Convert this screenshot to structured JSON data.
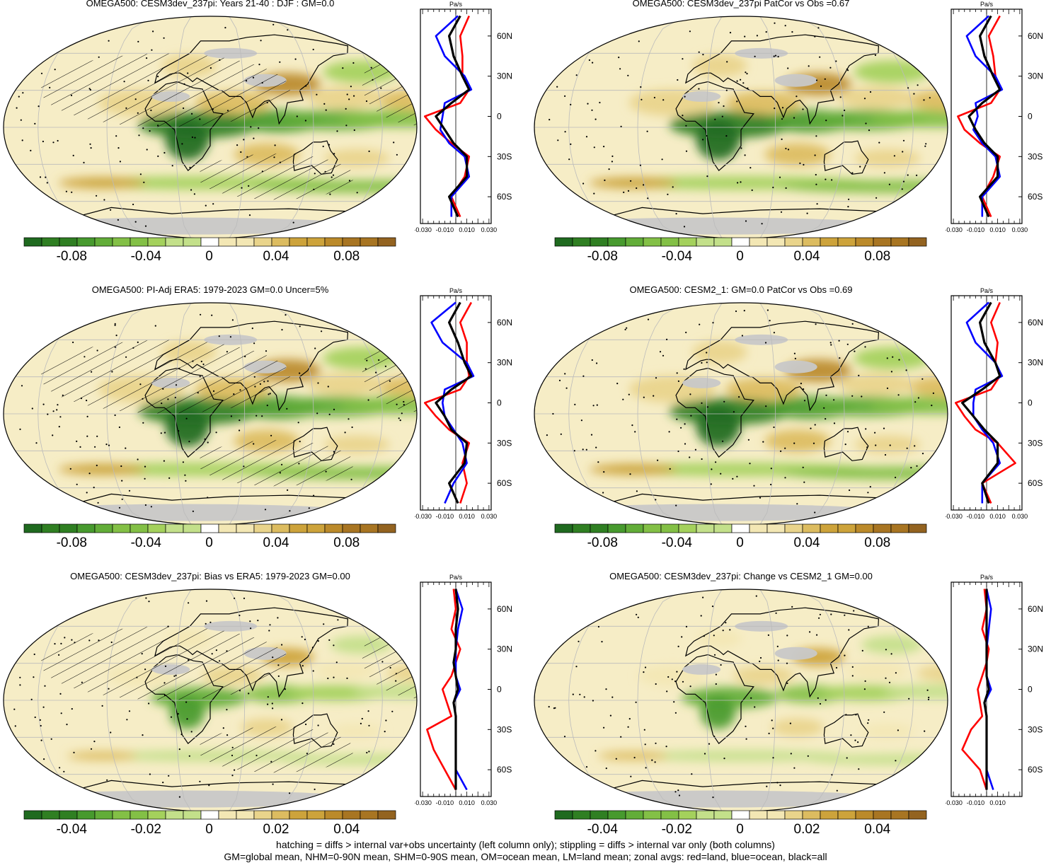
{
  "palette": [
    "#1f6a1f",
    "#2f7f22",
    "#479a2e",
    "#62ad38",
    "#83c046",
    "#a4d15c",
    "#c3e08a",
    "#ffffff",
    "#f3e7b4",
    "#e9d48b",
    "#dcbc60",
    "#cda33b",
    "#bb8a2a",
    "#a87522",
    "#936320"
  ],
  "land_gray": "#c8c8c8",
  "series_colors": {
    "land": "#ff0000",
    "ocean": "#0000ff",
    "all": "#000000"
  },
  "panels": [
    {
      "title": "OMEGA500: CESM3dev_237pi: Years 21-40 : DJF : GM=0.0",
      "cbar_labels": [
        "-0.08",
        "-0.04",
        "0",
        "0.04",
        "0.08"
      ],
      "zonal_ticks": [
        "-0.030",
        "-0.010",
        "0.010",
        "0.030"
      ],
      "hatch": true
    },
    {
      "title": "OMEGA500: CESM3dev_237pi PatCor vs Obs =0.67",
      "cbar_labels": [
        "-0.08",
        "-0.04",
        "0",
        "0.04",
        "0.08"
      ],
      "zonal_ticks": [
        "-0.030",
        "-0.010",
        "0.010",
        "0.030"
      ],
      "hatch": false
    },
    {
      "title": "OMEGA500: PI-Adj ERA5: 1979-2023 GM=0.0 Uncer=5%",
      "cbar_labels": [
        "-0.08",
        "-0.04",
        "0",
        "0.04",
        "0.08"
      ],
      "zonal_ticks": [
        "-0.030",
        "-0.010",
        "0.010",
        "0.030"
      ],
      "hatch": true
    },
    {
      "title": "OMEGA500: CESM2_1: GM=0.0 PatCor vs Obs =0.69",
      "cbar_labels": [
        "-0.08",
        "-0.04",
        "0",
        "0.04",
        "0.08"
      ],
      "zonal_ticks": [
        "-0.030",
        "-0.010",
        "0.010",
        "0.030"
      ],
      "hatch": false
    },
    {
      "title": "OMEGA500: CESM3dev_237pi: Bias vs ERA5: 1979-2023 GM=0.00",
      "cbar_labels": [
        "-0.04",
        "-0.02",
        "0",
        "0.02",
        "0.04"
      ],
      "zonal_ticks": [
        "-0.030",
        "-0.010",
        "0.010",
        "0.030"
      ],
      "hatch": true
    },
    {
      "title": "OMEGA500: CESM3dev_237pi: Change vs CESM2_1 GM=0.00",
      "cbar_labels": [
        "-0.04",
        "-0.02",
        "0",
        "0.02",
        "0.04"
      ],
      "zonal_ticks": [
        "-0.030",
        "-0.010",
        "0.010"
      ],
      "hatch": false
    }
  ],
  "zonal_unit": "Pa/s",
  "lat_labels": [
    "60N",
    "30N",
    "0",
    "30S",
    "60S"
  ],
  "footer": {
    "line1": "hatching = diffs > internal var+obs uncertainty (left column only); stippling = diffs > internal var only (both columns)",
    "line2": "GM=global mean, NHM=0-90N mean, SHM=0-90S mean, OM=ocean mean, LM=land mean; zonal avgs: red=land, blue=ocean, black=all"
  },
  "chart_data": {
    "type": "map",
    "variable": "OMEGA500",
    "zonal_profiles": [
      {
        "lat": [
          75,
          60,
          45,
          30,
          20,
          10,
          0,
          -10,
          -20,
          -30,
          -45,
          -60,
          -75
        ],
        "all": [
          0.004,
          -0.006,
          -0.002,
          0.006,
          0.012,
          -0.004,
          -0.018,
          -0.01,
          -0.002,
          0.01,
          0.01,
          -0.006,
          0.002
        ],
        "ocean": [
          0.002,
          -0.018,
          -0.01,
          0.008,
          0.014,
          -0.01,
          -0.012,
          -0.014,
          -0.006,
          0.008,
          0.012,
          -0.004,
          -0.004
        ],
        "land": [
          0.012,
          0.004,
          0.006,
          0.006,
          0.012,
          0.004,
          -0.028,
          -0.018,
          -0.004,
          0.012,
          0.008,
          -0.004,
          0.004
        ]
      },
      {
        "lat": [
          75,
          60,
          45,
          30,
          20,
          10,
          0,
          -10,
          -20,
          -30,
          -45,
          -60,
          -75
        ],
        "all": [
          0.004,
          -0.006,
          -0.002,
          0.006,
          0.012,
          -0.004,
          -0.016,
          -0.01,
          -0.002,
          0.01,
          0.01,
          -0.006,
          0.002
        ],
        "ocean": [
          0.002,
          -0.018,
          -0.01,
          0.008,
          0.014,
          -0.01,
          -0.008,
          -0.012,
          -0.004,
          0.008,
          0.012,
          -0.004,
          -0.004
        ],
        "land": [
          0.012,
          0.002,
          0.006,
          0.008,
          0.012,
          0.004,
          -0.026,
          -0.02,
          -0.006,
          0.012,
          0.006,
          -0.004,
          0.004
        ]
      },
      {
        "lat": [
          75,
          60,
          45,
          30,
          20,
          10,
          0,
          -10,
          -20,
          -30,
          -45,
          -60,
          -75
        ],
        "all": [
          0.004,
          -0.006,
          0.002,
          0.008,
          0.014,
          -0.004,
          -0.018,
          -0.01,
          -0.004,
          0.01,
          0.008,
          -0.006,
          0.002
        ],
        "ocean": [
          0.0,
          -0.022,
          -0.012,
          0.01,
          0.016,
          -0.01,
          -0.012,
          -0.01,
          -0.002,
          0.006,
          0.01,
          -0.002,
          -0.01
        ],
        "land": [
          0.014,
          0.004,
          0.01,
          0.01,
          0.012,
          0.004,
          -0.028,
          -0.018,
          -0.006,
          0.012,
          0.006,
          0.01,
          0.004
        ]
      },
      {
        "lat": [
          75,
          60,
          45,
          30,
          20,
          10,
          0,
          -10,
          -20,
          -30,
          -45,
          -60,
          -75
        ],
        "all": [
          0.004,
          -0.006,
          -0.002,
          0.008,
          0.012,
          -0.004,
          -0.022,
          -0.012,
          -0.002,
          0.01,
          0.01,
          -0.004,
          0.002
        ],
        "ocean": [
          0.002,
          -0.018,
          -0.01,
          0.008,
          0.014,
          -0.01,
          -0.012,
          -0.012,
          -0.004,
          0.006,
          0.012,
          -0.004,
          -0.004
        ],
        "land": [
          0.012,
          0.004,
          0.01,
          0.008,
          0.012,
          0.004,
          -0.028,
          -0.02,
          -0.01,
          0.01,
          0.026,
          -0.004,
          0.004
        ]
      },
      {
        "lat": [
          75,
          60,
          45,
          30,
          20,
          10,
          0,
          -10,
          -20,
          -30,
          -45,
          -60,
          -75
        ],
        "all": [
          0.0,
          0.002,
          0.0,
          0.0,
          -0.002,
          0.0,
          0.002,
          -0.002,
          0.0,
          0.0,
          0.0,
          0.0,
          0.0
        ],
        "ocean": [
          0.0,
          0.006,
          0.002,
          0.0,
          0.0,
          0.0,
          0.004,
          -0.002,
          0.0,
          0.0,
          0.0,
          0.0,
          0.01
        ],
        "land": [
          -0.002,
          0.0,
          -0.004,
          0.004,
          0.0,
          -0.004,
          -0.012,
          -0.008,
          -0.004,
          -0.026,
          -0.02,
          -0.01,
          0.0
        ]
      },
      {
        "lat": [
          75,
          60,
          45,
          30,
          20,
          10,
          0,
          -10,
          -20,
          -30,
          -45,
          -60,
          -75
        ],
        "all": [
          0.0,
          0.0,
          0.0,
          0.0,
          0.0,
          0.0,
          0.002,
          -0.002,
          0.0,
          0.0,
          0.0,
          0.0,
          0.0
        ],
        "ocean": [
          0.0,
          0.004,
          0.002,
          0.0,
          0.0,
          0.0,
          0.004,
          -0.002,
          0.0,
          0.0,
          0.0,
          0.0,
          0.006
        ],
        "land": [
          -0.002,
          0.0,
          -0.004,
          0.002,
          0.0,
          -0.004,
          -0.008,
          -0.006,
          -0.004,
          -0.014,
          -0.022,
          -0.006,
          0.0
        ]
      }
    ]
  }
}
